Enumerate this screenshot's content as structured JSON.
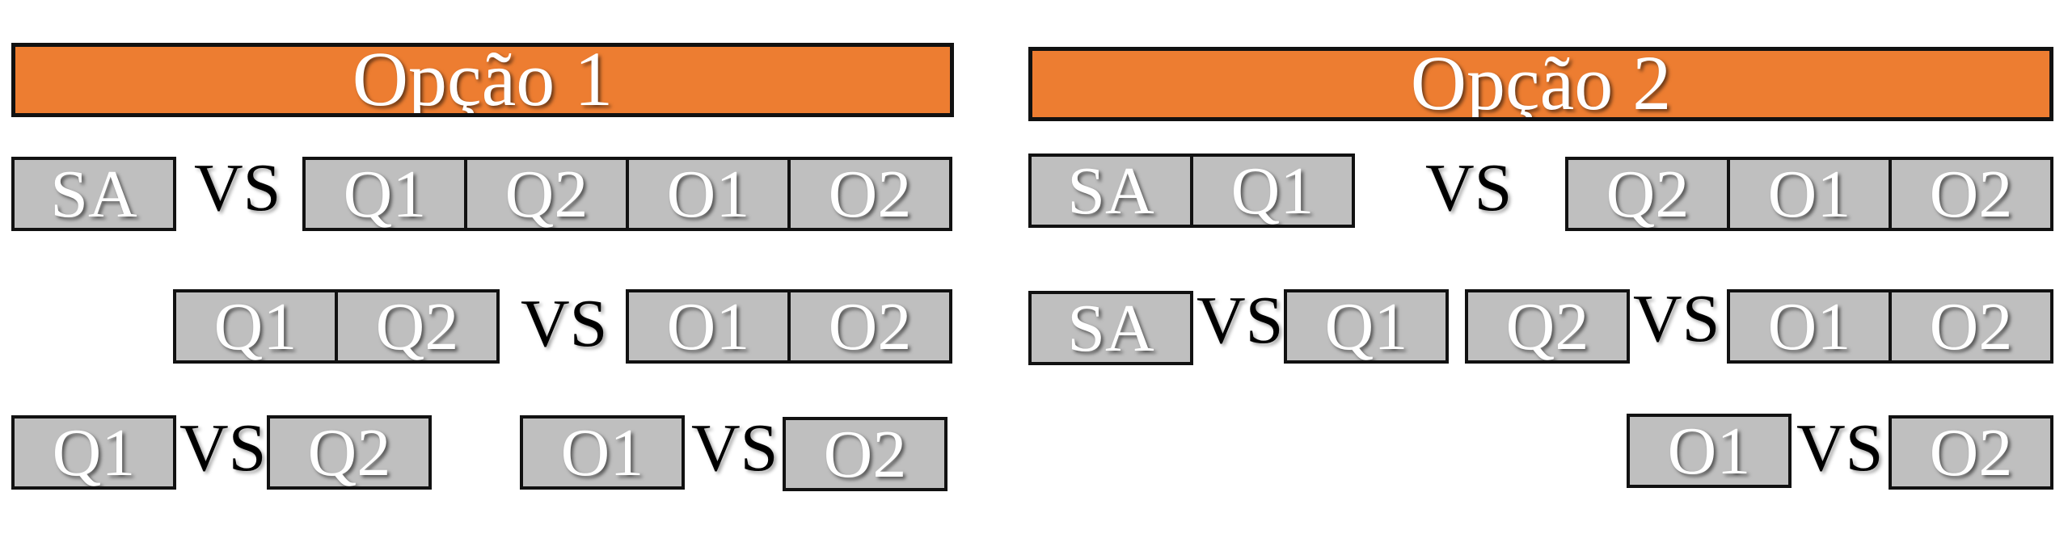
{
  "option1": {
    "title": "Opção 1",
    "row1": {
      "left": [
        "SA"
      ],
      "vs": "VS",
      "right": [
        "Q1",
        "Q2",
        "O1",
        "O2"
      ]
    },
    "row2": {
      "left": [
        "Q1",
        "Q2"
      ],
      "vs": "VS",
      "right": [
        "O1",
        "O2"
      ]
    },
    "row3": {
      "pairA": {
        "left": "Q1",
        "vs": "VS",
        "right": "Q2"
      },
      "pairB": {
        "left": "O1",
        "vs": "VS",
        "right": "O2"
      }
    }
  },
  "option2": {
    "title": "Opção 2",
    "row1": {
      "left": [
        "SA",
        "Q1"
      ],
      "vs": "VS",
      "right": [
        "Q2",
        "O1",
        "O2"
      ]
    },
    "row2": {
      "pairA": {
        "left": "SA",
        "vs": "VS",
        "right": "Q1"
      },
      "pairB": {
        "left": "Q2",
        "vs": "VS",
        "right": [
          "O1",
          "O2"
        ]
      }
    },
    "row3": {
      "left": "O1",
      "vs": "VS",
      "right": "O2"
    }
  },
  "colors": {
    "header_fill": "#ED7D31",
    "box_fill": "#BFBFBF",
    "border": "#111111",
    "box_text": "#FFFFFF",
    "vs_text": "#000000"
  }
}
